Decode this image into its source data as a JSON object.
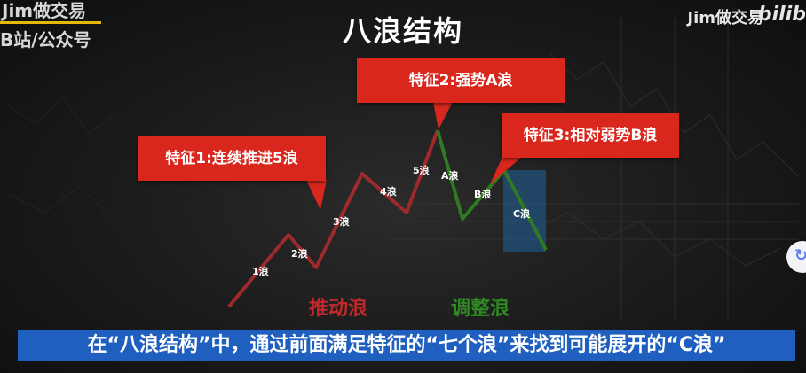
{
  "overlay": {
    "top_left_line1": "Jim做交易",
    "top_left_line2": "B站/公众号",
    "top_right": "Jim做交易",
    "brand": "bilib"
  },
  "slide": {
    "title": "八浪结构",
    "feature1": "特征1:连续推进5浪",
    "feature2": "特征2:强势A浪",
    "feature3": "特征3:相对弱势B浪",
    "impulse_label": "推动浪",
    "correction_label": "调整浪"
  },
  "waves": {
    "w1": "1浪",
    "w2": "2浪",
    "w3": "3浪",
    "w4": "4浪",
    "w5": "5浪",
    "wA": "A浪",
    "wB": "B浪",
    "wC": "C浪"
  },
  "subtitle": "在“八浪结构”中，通过前面满足特征的“七个浪”来找到可能展开的“C浪”",
  "side_button": {
    "icon": "circle-arrow-icon"
  },
  "colors": {
    "impulse": "#c0282a",
    "correction": "#2f8a22",
    "feature_box": "#d9271d",
    "subtitle_bar": "#1f5fbf"
  }
}
